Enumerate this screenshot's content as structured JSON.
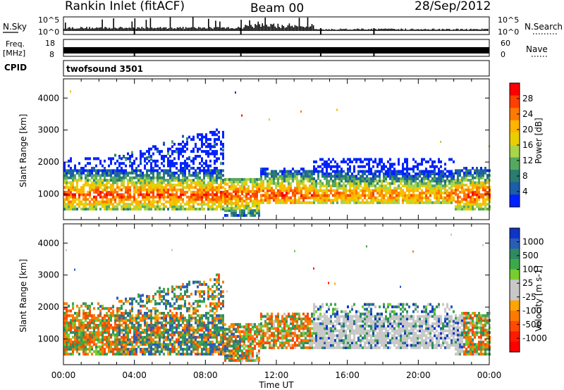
{
  "header": {
    "station": "Rankin Inlet (fitACF)",
    "beam": "Beam 00",
    "date": "28/Sep/2012"
  },
  "strip_nsky": {
    "left_label": "N.Sky",
    "right_label": "N.Search",
    "left_ticks": [
      "10^5",
      "10^0"
    ],
    "right_ticks": [
      "10^5",
      "10^0"
    ]
  },
  "strip_freq": {
    "left_label_1": "Freq.",
    "left_label_2": "[MHz]",
    "right_label": "Nave",
    "left_ticks": [
      "18",
      "8"
    ],
    "right_ticks": [
      "60",
      "0"
    ]
  },
  "strip_cpid": {
    "left_label": "CPID",
    "text": "twofsound 3501"
  },
  "chart_data": [
    {
      "type": "heatmap",
      "name": "power-panel",
      "ylabel": "Slant Range [km]",
      "xlabel": "",
      "x_ticks": [
        "00:00",
        "04:00",
        "08:00",
        "12:00",
        "16:00",
        "20:00",
        "00:00"
      ],
      "y_ticks": [
        1000,
        2000,
        3000,
        4000
      ],
      "ylim": [
        200,
        4600
      ],
      "xlim_hours": [
        0,
        24
      ],
      "colorbar": {
        "label": "Power [dB]",
        "ticks": [
          "28",
          "24",
          "20",
          "16",
          "12",
          "8",
          "4"
        ],
        "colors": [
          "#ff0000",
          "#ff4000",
          "#ff7a00",
          "#ffb400",
          "#e8d000",
          "#a9d54a",
          "#55a860",
          "#2a7c70",
          "#1c5ea8",
          "#0022ff"
        ]
      }
    },
    {
      "type": "heatmap",
      "name": "velocity-panel",
      "ylabel": "Slant Range [km]",
      "xlabel": "Time UT",
      "x_ticks": [
        "00:00",
        "04:00",
        "08:00",
        "12:00",
        "16:00",
        "20:00",
        "00:00"
      ],
      "y_ticks": [
        1000,
        2000,
        3000,
        4000
      ],
      "ylim": [
        200,
        4600
      ],
      "xlim_hours": [
        0,
        24
      ],
      "colorbar": {
        "label": "Velocity [m s-1]",
        "ticks": [
          "1000",
          "500",
          "100",
          "25",
          "-25",
          "-100",
          "-500",
          "-1000"
        ],
        "colors": [
          "#1034c8",
          "#2a5db8",
          "#2f8a64",
          "#3ca84a",
          "#78cc30",
          "#c8c8c8",
          "#c8c8c8",
          "#ffa500",
          "#ff7a00",
          "#ff4a00",
          "#ff1a00",
          "#ff0000"
        ]
      }
    }
  ]
}
